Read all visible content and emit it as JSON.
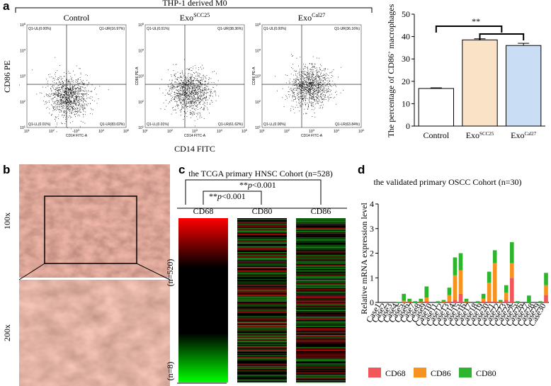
{
  "figure": {
    "panel_letters": [
      "a",
      "b",
      "c",
      "d"
    ],
    "flow": {
      "title": "THP-1 derived M0",
      "y_label": "CD86 PE",
      "x_label": "CD14 FITC",
      "tick_base": "10",
      "tick_exponents": [
        1,
        2,
        3,
        4,
        5
      ],
      "inner_x_label": "CD14 FITC-A",
      "inner_y_label": "CD86 PE-A",
      "plots": [
        {
          "title": "Control",
          "title_sup": null,
          "quadrants": [
            "Q1-UL(0.00%)",
            "Q1-UR(16.97%)",
            "Q1-LL(0.01%)",
            "Q1-LR(83.02%)"
          ]
        },
        {
          "title": "Exo",
          "title_sup": "SCC25",
          "quadrants": [
            "Q1-UL(0.01%)",
            "Q1-UR(38.36%)",
            "Q1-LL(0.01%)",
            "Q1-LR(61.62%)"
          ]
        },
        {
          "title": "Exo",
          "title_sup": "Cal27",
          "quadrants": [
            "Q1-UL(0.00%)",
            "Q1-UR(36.16%)",
            "Q1-LL(0.00%)",
            "Q1-LR(63.84%)"
          ]
        }
      ]
    },
    "histology": {
      "labels": [
        "100x",
        "200x"
      ]
    },
    "heatmap": {
      "title": "the TCGA primary HNSC Cohort (n=528)",
      "columns": [
        "CD68",
        "CD80",
        "CD86"
      ],
      "comparisons": [
        [
          "**",
          "p",
          "<0.001"
        ],
        [
          "**",
          "p",
          "<0.001"
        ]
      ],
      "groups": [
        "(n=520)",
        "(n=8)"
      ]
    }
  },
  "chart_data": [
    {
      "type": "bar",
      "y_label": [
        "The percentage of CD86",
        "+",
        " macrophages"
      ],
      "categories": [
        "Control",
        "Exo",
        "Exo"
      ],
      "category_superscripts": [
        null,
        "SCC25",
        "Cal27"
      ],
      "values": [
        16.8,
        38.5,
        36.0
      ],
      "errors": [
        0.3,
        0.5,
        1.0
      ],
      "colors": [
        "#ffffff",
        "#f9e2c6",
        "#c9def5"
      ],
      "ylim": [
        0,
        50
      ],
      "yticks": [
        0,
        10,
        20,
        30,
        40,
        50
      ],
      "annotation": "**"
    },
    {
      "type": "stacked_bar",
      "title": "the validated primary OSCC Cohort (n=30)",
      "y_label": "Relative mRNA expression level",
      "categories": [
        "Case1",
        "Case2",
        "Case3",
        "Case4",
        "Case5",
        "Case6",
        "Case7",
        "Case8",
        "Case9",
        "Case10",
        "Case11",
        "Case12",
        "Case13",
        "Case14",
        "Case15",
        "Case16",
        "Case17",
        "Case18",
        "Case19",
        "Case20",
        "Case21",
        "Case22",
        "Case23",
        "Case24",
        "Case25",
        "Case26",
        "Case27",
        "Case28",
        "Case29",
        "Case30"
      ],
      "ylim": [
        0,
        4
      ],
      "yticks": [
        0,
        1,
        2,
        3,
        4
      ],
      "legend": "bottom",
      "series": [
        {
          "name": "CD68",
          "color": "#f0565a",
          "values": [
            0,
            0,
            0,
            0,
            0.02,
            0.01,
            0,
            0.01,
            0.05,
            0,
            0,
            0.01,
            0.05,
            0.1,
            0.35,
            0.01,
            0,
            0,
            0.05,
            0.05,
            0.05,
            0.01,
            0.1,
            1.0,
            0,
            0,
            0,
            0,
            0,
            0.3
          ]
        },
        {
          "name": "CD86",
          "color": "#f7931e",
          "values": [
            0,
            0,
            0,
            0,
            0.05,
            0.02,
            0,
            0.02,
            0.15,
            0,
            0,
            0.02,
            0.25,
            1.0,
            0.95,
            0.02,
            0,
            0,
            0.1,
            0.75,
            1.55,
            0.02,
            0.3,
            0.6,
            0,
            0,
            0,
            0,
            0,
            0.4
          ]
        },
        {
          "name": "CD80",
          "color": "#2db52d",
          "values": [
            0,
            0,
            0,
            0.02,
            0.28,
            0.12,
            0.05,
            0.12,
            0.45,
            0,
            0.05,
            0.07,
            0.3,
            0.73,
            0.7,
            0.12,
            0,
            0.05,
            0.2,
            0.45,
            0.52,
            0.07,
            0.3,
            0.85,
            0.05,
            0,
            0.28,
            0,
            0.05,
            0.5
          ]
        }
      ]
    }
  ]
}
